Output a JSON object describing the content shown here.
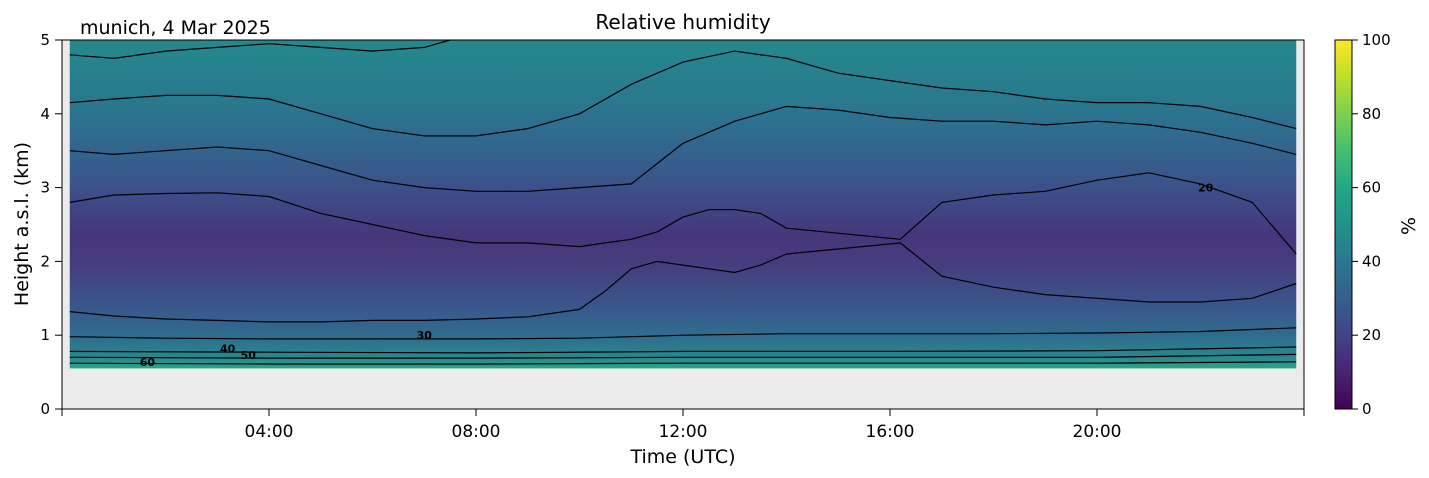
{
  "header": {
    "location_date": "munich, 4 Mar 2025"
  },
  "chart_data": {
    "type": "heatmap",
    "title": "Relative humidity",
    "xlabel": "Time (UTC)",
    "ylabel": "Height a.s.l. (km)",
    "xlim_hours": [
      0,
      24
    ],
    "ylim_km": [
      0,
      5
    ],
    "x_ticks": [
      "04:00",
      "08:00",
      "12:00",
      "16:00",
      "20:00"
    ],
    "x_tick_hours": [
      4,
      8,
      12,
      16,
      20
    ],
    "y_ticks": [
      "0",
      "1",
      "2",
      "3",
      "4",
      "5"
    ],
    "y_tick_values": [
      0,
      1,
      2,
      3,
      4,
      5
    ],
    "data_height_range_km": [
      0.55,
      5
    ],
    "data_time_range_hours": [
      0.15,
      23.85
    ],
    "colorbar": {
      "label": "%",
      "colormap": "viridis",
      "range": [
        0,
        100
      ],
      "ticks": [
        "0",
        "20",
        "40",
        "60",
        "80",
        "100"
      ],
      "tick_values": [
        0,
        20,
        40,
        60,
        80,
        100
      ]
    },
    "contour_labels": [
      {
        "text": "20",
        "hour": 22.1,
        "km": 3.0
      },
      {
        "text": "30",
        "hour": 7.0,
        "km": 1.0
      },
      {
        "text": "40",
        "hour": 3.2,
        "km": 0.82
      },
      {
        "text": "50",
        "hour": 3.6,
        "km": 0.73
      },
      {
        "text": "60",
        "hour": 1.65,
        "km": 0.64
      }
    ],
    "contours": [
      {
        "level": 20,
        "hours": [
          0.15,
          1,
          2,
          3,
          4,
          5,
          6,
          7,
          8,
          9,
          10,
          10.5,
          11,
          11.5,
          12,
          12.5,
          13,
          13.5,
          14,
          16.2,
          17,
          18,
          19,
          20,
          21,
          22,
          23,
          23.85
        ],
        "km": [
          2.8,
          2.9,
          2.92,
          2.93,
          2.88,
          2.65,
          2.5,
          2.35,
          2.25,
          2.25,
          2.2,
          2.25,
          2.3,
          2.4,
          2.6,
          2.7,
          2.7,
          2.65,
          2.45,
          2.3,
          2.8,
          2.9,
          2.95,
          3.1,
          3.2,
          3.05,
          2.8,
          2.1
        ]
      },
      {
        "level": 20,
        "hours": [
          0.15,
          1,
          2,
          3,
          4,
          5,
          6,
          7,
          8,
          9,
          10,
          10.5,
          11,
          11.5,
          12,
          12.5,
          13,
          13.5,
          14,
          16.2,
          17,
          18,
          19,
          20,
          21,
          22,
          23,
          23.85
        ],
        "km": [
          1.32,
          1.26,
          1.22,
          1.2,
          1.18,
          1.18,
          1.2,
          1.2,
          1.22,
          1.25,
          1.35,
          1.6,
          1.9,
          2.0,
          1.95,
          1.9,
          1.85,
          1.95,
          2.1,
          2.25,
          1.8,
          1.65,
          1.55,
          1.5,
          1.45,
          1.45,
          1.5,
          1.7
        ]
      },
      {
        "level": 30,
        "hours": [
          0.15,
          1,
          2,
          3,
          4,
          5,
          6,
          7,
          8,
          9,
          10,
          11,
          12,
          13,
          14,
          15,
          16,
          17,
          18,
          19,
          20,
          21,
          22,
          23,
          23.85
        ],
        "km": [
          3.5,
          3.45,
          3.5,
          3.55,
          3.5,
          3.3,
          3.1,
          3.0,
          2.95,
          2.95,
          3.0,
          3.05,
          3.6,
          3.9,
          4.1,
          4.05,
          3.95,
          3.9,
          3.9,
          3.85,
          3.9,
          3.85,
          3.75,
          3.6,
          3.45
        ]
      },
      {
        "level": 30,
        "hours": [
          0.15,
          2,
          4,
          6,
          8,
          10,
          12,
          14,
          16,
          18,
          20,
          22,
          23.85
        ],
        "km": [
          0.98,
          0.96,
          0.95,
          0.95,
          0.95,
          0.96,
          1.0,
          1.02,
          1.02,
          1.02,
          1.03,
          1.05,
          1.1
        ]
      },
      {
        "level": 40,
        "hours": [
          0.15,
          1,
          2,
          3,
          4,
          5,
          6,
          7,
          8,
          9,
          10,
          11,
          12,
          13,
          14,
          15,
          16,
          17,
          18,
          19,
          20,
          21,
          22,
          23,
          23.85
        ],
        "km": [
          4.15,
          4.2,
          4.25,
          4.25,
          4.2,
          4.0,
          3.8,
          3.7,
          3.7,
          3.8,
          4.0,
          4.4,
          4.7,
          4.85,
          4.75,
          4.55,
          4.45,
          4.35,
          4.3,
          4.2,
          4.15,
          4.15,
          4.1,
          3.95,
          3.8
        ]
      },
      {
        "level": 40,
        "hours": [
          0.15,
          4,
          8,
          12,
          16,
          20,
          23.85
        ],
        "km": [
          0.78,
          0.77,
          0.76,
          0.78,
          0.78,
          0.79,
          0.84
        ]
      },
      {
        "level": 50,
        "hours": [
          0.15,
          1,
          2,
          3,
          4,
          5,
          6,
          7,
          7.5
        ],
        "km": [
          4.8,
          4.75,
          4.85,
          4.9,
          4.95,
          4.9,
          4.85,
          4.9,
          5.0
        ]
      },
      {
        "level": 50,
        "hours": [
          0.15,
          4,
          8,
          12,
          16,
          20,
          23.85
        ],
        "km": [
          0.7,
          0.69,
          0.69,
          0.7,
          0.7,
          0.7,
          0.74
        ]
      },
      {
        "level": 60,
        "hours": [
          0.15,
          4,
          8,
          12,
          16,
          20,
          23.85
        ],
        "km": [
          0.62,
          0.61,
          0.61,
          0.62,
          0.62,
          0.62,
          0.64
        ]
      }
    ]
  }
}
